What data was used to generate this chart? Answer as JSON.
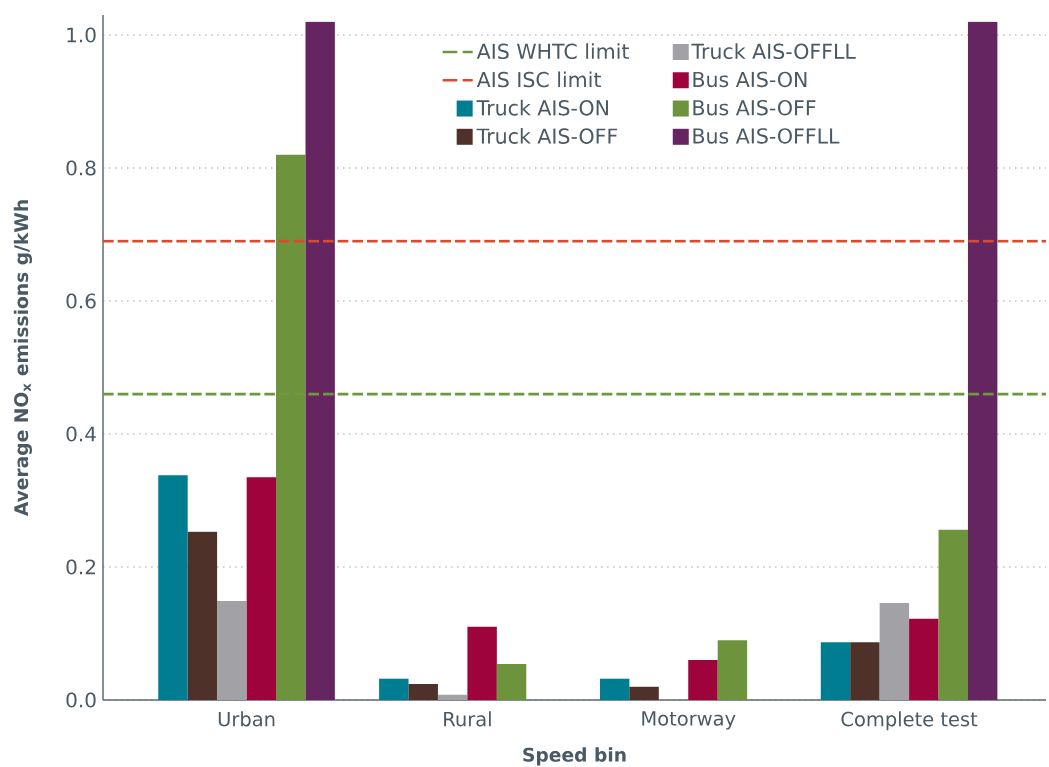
{
  "chart_data": {
    "type": "bar",
    "xlabel": "Speed bin",
    "ylabel": "Average NO$_{x}$ emissions g/kWh",
    "categories": [
      "Urban",
      "Rural",
      "Motorway",
      "Complete test"
    ],
    "series": [
      {
        "name": "Truck AIS-ON",
        "color": "#007d91",
        "values": [
          0.338,
          0.032,
          0.032,
          0.087
        ]
      },
      {
        "name": "Truck AIS-OFF",
        "color": "#4e3128",
        "values": [
          0.253,
          0.024,
          0.02,
          0.087
        ]
      },
      {
        "name": "Truck AIS-OFFLL",
        "color": "#a2a1a5",
        "values": [
          0.149,
          0.008,
          null,
          0.146
        ]
      },
      {
        "name": "Bus AIS-ON",
        "color": "#9e043b",
        "values": [
          0.335,
          0.11,
          0.06,
          0.122
        ]
      },
      {
        "name": "Bus AIS-OFF",
        "color": "#6d943c",
        "values": [
          0.82,
          0.054,
          0.09,
          0.256
        ]
      },
      {
        "name": "Bus AIS-OFFLL",
        "color": "#642560",
        "values": [
          1.02,
          null,
          null,
          1.02
        ]
      }
    ],
    "ylim": [
      0,
      1.03
    ],
    "yticks": [
      {
        "value": 0,
        "label": "0.0"
      },
      0.2,
      0.4,
      0.6,
      0.8,
      {
        "value": 1,
        "label": "1.0"
      }
    ],
    "grid": "y",
    "legend": "top",
    "ref_lines": [
      {
        "axis": "y",
        "value": 0.46,
        "label": "AIS WHTC limit",
        "color": "#70963f",
        "line_style": "dashed"
      },
      {
        "axis": "y",
        "value": 0.69,
        "label": "AIS ISC limit",
        "color": "#dc4a2a",
        "line_style": "dashed"
      }
    ]
  }
}
